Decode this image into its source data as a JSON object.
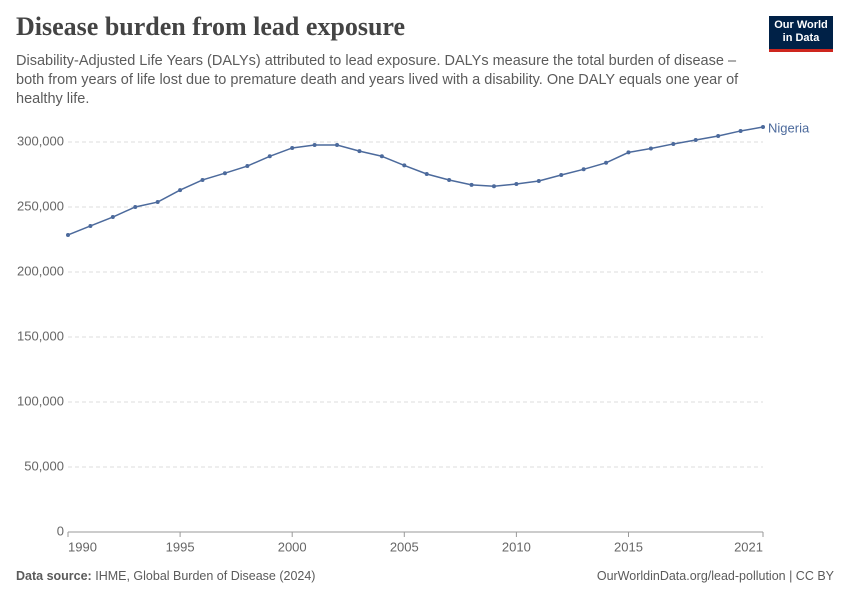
{
  "chart_data": {
    "type": "line",
    "title": "Disease burden from lead exposure",
    "subtitle": "Disability-Adjusted Life Years (DALYs) attributed to lead exposure. DALYs measure the total burden of disease – both from years of life lost due to premature death and years lived with a disability. One DALY equals one year of healthy life.",
    "x": [
      1990,
      1991,
      1992,
      1993,
      1994,
      1995,
      1996,
      1997,
      1998,
      1999,
      2000,
      2001,
      2002,
      2003,
      2004,
      2005,
      2006,
      2007,
      2008,
      2009,
      2010,
      2011,
      2012,
      2013,
      2014,
      2015,
      2016,
      2017,
      2018,
      2019,
      2020,
      2021
    ],
    "series": [
      {
        "name": "Nigeria",
        "color": "#4c6a9c",
        "values": [
          228500,
          235400,
          242300,
          250000,
          253800,
          263000,
          270800,
          276000,
          281500,
          289000,
          295400,
          297700,
          297700,
          293000,
          289000,
          282000,
          275400,
          270800,
          267000,
          266000,
          267700,
          270000,
          274600,
          279000,
          284000,
          292000,
          295000,
          298500,
          301500,
          304600,
          308500,
          311500
        ]
      }
    ],
    "xlim": [
      1990,
      2021
    ],
    "xticks": [
      1990,
      1995,
      2000,
      2005,
      2010,
      2015,
      2021
    ],
    "ylim": [
      0,
      300000
    ],
    "yticks": [
      0,
      {
        "value": 50000,
        "label": "50,000"
      },
      {
        "value": 100000,
        "label": "100,000"
      },
      {
        "value": 150000,
        "label": "150,000"
      },
      {
        "value": 200000,
        "label": "200,000"
      },
      {
        "value": 250000,
        "label": "250,000"
      },
      {
        "value": 300000,
        "label": "300,000"
      }
    ],
    "grid": true
  },
  "footer": {
    "source_label": "Data source:",
    "source": "IHME, Global Burden of Disease (2024)",
    "credit": "OurWorldinData.org/lead-pollution | CC BY"
  },
  "logo": {
    "line1": "Our World",
    "line2": "in Data"
  }
}
